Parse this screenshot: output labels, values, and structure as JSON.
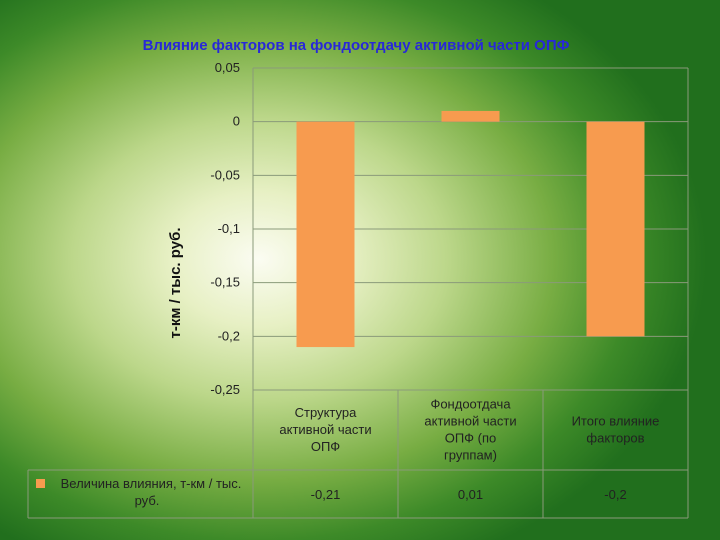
{
  "chart_data": {
    "type": "bar",
    "title": "Влияние факторов на фондоотдачу активной части ОПФ",
    "ylabel": "т-км / тыс. руб.",
    "xlabel": "",
    "categories": [
      [
        "Структура",
        "активной части",
        "ОПФ"
      ],
      [
        "Фондоотдача",
        "активной части",
        "ОПФ (по",
        "группам)"
      ],
      [
        "Итого влияние",
        "факторов"
      ]
    ],
    "series": [
      {
        "name_lines": [
          "Величина влияния, т-км / тыс.",
          "руб."
        ],
        "values": [
          -0.21,
          0.01,
          -0.2
        ],
        "value_labels": [
          "-0,21",
          "0,01",
          "-0,2"
        ],
        "color": "#f79b4f"
      }
    ],
    "ylim": [
      -0.25,
      0.05
    ],
    "yticks": [
      0.05,
      0,
      -0.05,
      -0.1,
      -0.15,
      -0.2,
      -0.25
    ],
    "ytick_labels": [
      "0,05",
      "0",
      "-0,05",
      "-0,1",
      "-0,15",
      "-0,2",
      "-0,25"
    ],
    "grid": true,
    "legend": "data-table"
  }
}
